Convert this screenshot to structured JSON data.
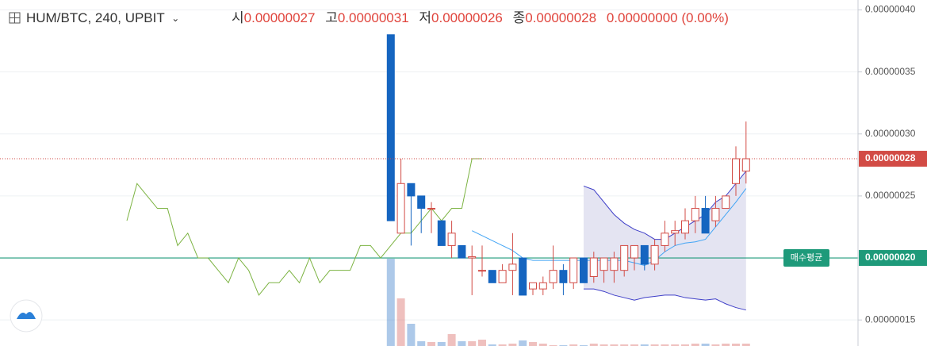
{
  "header": {
    "symbol": "HUM/BTC, 240, UPBIT",
    "open_label": "시",
    "open": "0.00000027",
    "high_label": "고",
    "high": "0.00000031",
    "low_label": "저",
    "low": "0.00000026",
    "close_label": "종",
    "close": "0.00000028",
    "change": "0.00000000 (0.00%)"
  },
  "chart_data": {
    "type": "candlestick",
    "ylim": [
      1.29e-07,
      4.08e-07
    ],
    "yticks": [
      {
        "value": 4e-07,
        "label": "0.00000040"
      },
      {
        "value": 3.5e-07,
        "label": "0.00000035"
      },
      {
        "value": 3e-07,
        "label": "0.00000030"
      },
      {
        "value": 2.5e-07,
        "label": "0.00000025"
      },
      {
        "value": 2e-07,
        "label": "0.00000020"
      },
      {
        "value": 1.5e-07,
        "label": "0.00000015"
      }
    ],
    "grid": true,
    "up_color": "#d24b45",
    "down_color": "#1565c0",
    "last_price": {
      "value": 2.8e-07,
      "label": "0.00000028"
    },
    "avg_buy_price": {
      "value": 2e-07,
      "label": "0.00000020"
    },
    "avg_buy_label": "매수평균",
    "open": [
      null,
      null,
      null,
      null,
      null,
      null,
      null,
      null,
      null,
      null,
      null,
      null,
      null,
      null,
      null,
      null,
      null,
      null,
      null,
      null,
      null,
      null,
      null,
      null,
      null,
      null,
      3.8e-07,
      2.2e-07,
      2.6e-07,
      2.5e-07,
      2.4e-07,
      2.3e-07,
      2.1e-07,
      2.1e-07,
      2e-07,
      1.9e-07,
      1.9e-07,
      1.8e-07,
      1.9e-07,
      2e-07,
      1.75e-07,
      1.75e-07,
      1.8e-07,
      1.9e-07,
      1.8e-07,
      2e-07,
      1.85e-07,
      1.9e-07,
      1.9e-07,
      1.9e-07,
      2e-07,
      2.1e-07,
      1.95e-07,
      2.1e-07,
      2.2e-07,
      2.2e-07,
      2.3e-07,
      2.4e-07,
      2.3e-07,
      2.4e-07,
      2.6e-07,
      2.7e-07
    ],
    "high": [
      null,
      null,
      null,
      null,
      null,
      null,
      null,
      null,
      null,
      null,
      null,
      null,
      null,
      null,
      null,
      null,
      null,
      null,
      null,
      null,
      null,
      null,
      null,
      null,
      null,
      null,
      3.8e-07,
      2.8e-07,
      2.6e-07,
      2.5e-07,
      2.45e-07,
      2.3e-07,
      2.3e-07,
      2.1e-07,
      2.1e-07,
      2.1e-07,
      1.9e-07,
      1.95e-07,
      2.2e-07,
      2e-07,
      1.8e-07,
      1.85e-07,
      2.1e-07,
      1.95e-07,
      2e-07,
      2e-07,
      2.05e-07,
      2e-07,
      2.05e-07,
      2.1e-07,
      2.1e-07,
      2.1e-07,
      2.15e-07,
      2.3e-07,
      2.3e-07,
      2.4e-07,
      2.5e-07,
      2.5e-07,
      2.5e-07,
      2.5e-07,
      2.9e-07,
      3.1e-07
    ],
    "low": [
      null,
      null,
      null,
      null,
      null,
      null,
      null,
      null,
      null,
      null,
      null,
      null,
      null,
      null,
      null,
      null,
      null,
      null,
      null,
      null,
      null,
      null,
      null,
      null,
      null,
      null,
      2.3e-07,
      2.2e-07,
      2.1e-07,
      2.2e-07,
      2.2e-07,
      2.1e-07,
      2e-07,
      2e-07,
      1.7e-07,
      1.85e-07,
      1.8e-07,
      1.8e-07,
      1.7e-07,
      1.7e-07,
      1.7e-07,
      1.7e-07,
      1.75e-07,
      1.7e-07,
      1.75e-07,
      1.8e-07,
      1.8e-07,
      1.8e-07,
      1.8e-07,
      1.85e-07,
      1.9e-07,
      1.9e-07,
      1.9e-07,
      2.05e-07,
      2.1e-07,
      2.15e-07,
      2.2e-07,
      2.2e-07,
      2.25e-07,
      2.4e-07,
      2.5e-07,
      2.6e-07
    ],
    "close": [
      null,
      null,
      null,
      null,
      null,
      null,
      null,
      null,
      null,
      null,
      null,
      null,
      null,
      null,
      null,
      null,
      null,
      null,
      null,
      null,
      null,
      null,
      null,
      null,
      null,
      null,
      2.3e-07,
      2.6e-07,
      2.5e-07,
      2.4e-07,
      2.4e-07,
      2.1e-07,
      2.2e-07,
      2e-07,
      2.01e-07,
      1.9e-07,
      1.8e-07,
      1.9e-07,
      1.95e-07,
      1.7e-07,
      1.8e-07,
      1.8e-07,
      1.9e-07,
      1.8e-07,
      2e-07,
      1.8e-07,
      2e-07,
      2e-07,
      2e-07,
      2.1e-07,
      2.1e-07,
      1.95e-07,
      2.1e-07,
      2.2e-07,
      2.22e-07,
      2.3e-07,
      2.4e-07,
      2.2e-07,
      2.4e-07,
      2.5e-07,
      2.8e-07,
      2.8e-07
    ],
    "volume": [
      null,
      null,
      null,
      null,
      null,
      null,
      null,
      null,
      null,
      null,
      null,
      null,
      null,
      null,
      null,
      null,
      null,
      null,
      null,
      null,
      null,
      null,
      null,
      null,
      null,
      null,
      110,
      60,
      28,
      6,
      5,
      5,
      15,
      6,
      6,
      8,
      2,
      2,
      3,
      7,
      5,
      3,
      1,
      1,
      2,
      1,
      3,
      2,
      2,
      2,
      2,
      2,
      2,
      2,
      2,
      2,
      3,
      3,
      2,
      3,
      3,
      3
    ],
    "compare": {
      "color": "#7cb342",
      "values": [
        2.3e-07,
        2.6e-07,
        2.5e-07,
        2.4e-07,
        2.4e-07,
        2.1e-07,
        2.2e-07,
        2e-07,
        2e-07,
        1.9e-07,
        1.8e-07,
        2e-07,
        1.9e-07,
        1.7e-07,
        1.8e-07,
        1.8e-07,
        1.9e-07,
        1.8e-07,
        2e-07,
        1.8e-07,
        1.9e-07,
        1.9e-07,
        1.9e-07,
        2.1e-07,
        2.1e-07,
        2e-07,
        2.1e-07,
        2.2e-07,
        2.2e-07,
        2.3e-07,
        2.4e-07,
        2.3e-07,
        2.4e-07,
        2.4e-07,
        2.8e-07,
        2.8e-07,
        null,
        null,
        null,
        null,
        null,
        null,
        null,
        null,
        null,
        null,
        null,
        null,
        null,
        null,
        null,
        null,
        null,
        null,
        null,
        null,
        null,
        null,
        null,
        null,
        null,
        null
      ]
    },
    "ma": {
      "color": "#42a5f5",
      "values": [
        null,
        null,
        null,
        null,
        null,
        null,
        null,
        null,
        null,
        null,
        null,
        null,
        null,
        null,
        null,
        null,
        null,
        null,
        null,
        null,
        null,
        null,
        null,
        null,
        null,
        null,
        null,
        null,
        null,
        null,
        null,
        null,
        null,
        null,
        2.22e-07,
        2.18e-07,
        2.14e-07,
        2.1e-07,
        2.06e-07,
        2e-07,
        1.98e-07,
        1.98e-07,
        1.98e-07,
        1.98e-07,
        1.98e-07,
        1.98e-07,
        1.98e-07,
        1.98e-07,
        1.98e-07,
        1.98e-07,
        1.96e-07,
        1.94e-07,
        1.98e-07,
        2.05e-07,
        2.1e-07,
        2.12e-07,
        2.13e-07,
        2.15e-07,
        2.25e-07,
        2.35e-07,
        2.45e-07,
        2.56e-07
      ]
    },
    "bands": {
      "color": "#3f3fc8",
      "fill": "#e4e4f2",
      "upper": [
        null,
        null,
        null,
        null,
        null,
        null,
        null,
        null,
        null,
        null,
        null,
        null,
        null,
        null,
        null,
        null,
        null,
        null,
        null,
        null,
        null,
        null,
        null,
        null,
        null,
        null,
        null,
        null,
        null,
        null,
        null,
        null,
        null,
        null,
        null,
        null,
        null,
        null,
        null,
        null,
        null,
        null,
        null,
        null,
        null,
        2.58e-07,
        2.55e-07,
        2.45e-07,
        2.35e-07,
        2.28e-07,
        2.23e-07,
        2.2e-07,
        2.15e-07,
        2.15e-07,
        2.2e-07,
        2.25e-07,
        2.3e-07,
        2.35e-07,
        2.45e-07,
        2.5e-07,
        2.6e-07,
        2.7e-07
      ],
      "lower": [
        null,
        null,
        null,
        null,
        null,
        null,
        null,
        null,
        null,
        null,
        null,
        null,
        null,
        null,
        null,
        null,
        null,
        null,
        null,
        null,
        null,
        null,
        null,
        null,
        null,
        null,
        null,
        null,
        null,
        null,
        null,
        null,
        null,
        null,
        null,
        null,
        null,
        null,
        null,
        null,
        null,
        null,
        null,
        null,
        null,
        1.75e-07,
        1.75e-07,
        1.73e-07,
        1.7e-07,
        1.68e-07,
        1.66e-07,
        1.68e-07,
        1.69e-07,
        1.7e-07,
        1.7e-07,
        1.68e-07,
        1.67e-07,
        1.66e-07,
        1.67e-07,
        1.63e-07,
        1.6e-07,
        1.58e-07
      ]
    }
  }
}
